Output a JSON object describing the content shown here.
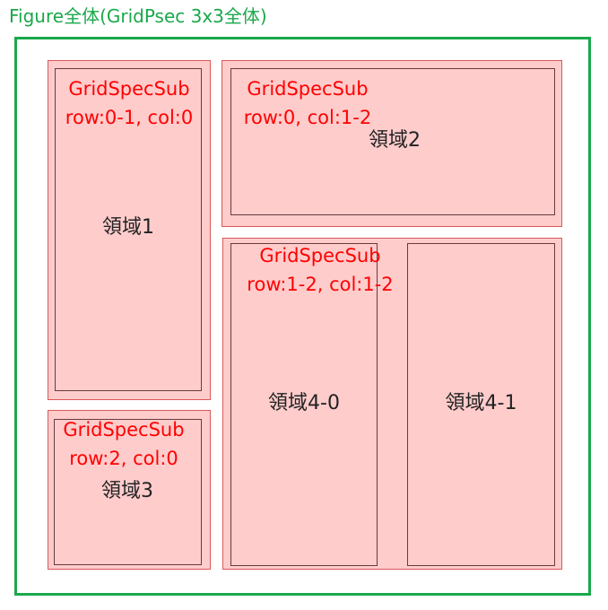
{
  "figure": {
    "title": "Figure全体(GridPsec 3x3全体)",
    "border_color": "#1aa84a"
  },
  "colors": {
    "subplot_fill": "#ffcccc",
    "subplot_border": "#d95a5a",
    "label_color": "#ff0000",
    "area_border": "#6a3a3a"
  },
  "subplots": [
    {
      "line1": "GridSpecSub",
      "line2": "row:0-1, col:0"
    },
    {
      "line1": "GridSpecSub",
      "line2": "row:0, col:1-2"
    },
    {
      "line1": "GridSpecSub",
      "line2": "row:2, col:0"
    },
    {
      "line1": "GridSpecSub",
      "line2": "row:1-2, col:1-2"
    }
  ],
  "areas": [
    {
      "label": "領域1"
    },
    {
      "label": "領域2"
    },
    {
      "label": "領域3"
    },
    {
      "label": "領域4-0"
    },
    {
      "label": "領域4-1"
    }
  ]
}
